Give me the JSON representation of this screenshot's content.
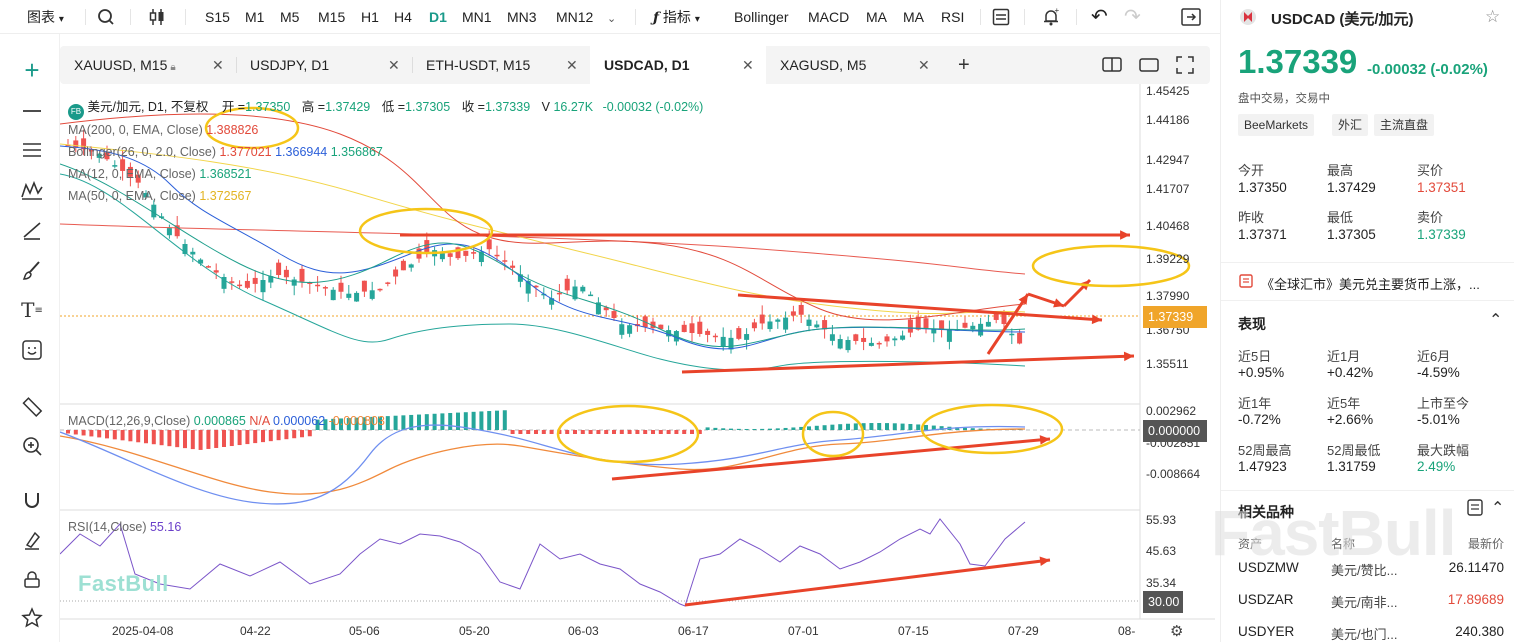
{
  "toolbar": {
    "chart_type": "图表",
    "timeframes": [
      "S15",
      "M1",
      "M5",
      "M15",
      "H1",
      "H4",
      "D1",
      "MN1",
      "MN3",
      "MN12"
    ],
    "selected_tf": "D1",
    "indicator_label": "指标",
    "studies": [
      "Bollinger",
      "MACD",
      "MA",
      "MA",
      "RSI"
    ]
  },
  "tabs": [
    {
      "label": "XAUUSD, M15",
      "locked": true
    },
    {
      "label": "USDJPY, D1"
    },
    {
      "label": "ETH-USDT, M15"
    },
    {
      "label": "USDCAD, D1",
      "active": true
    },
    {
      "label": "XAGUSD, M5"
    }
  ],
  "legend": {
    "badge": "FB",
    "symbol": "美元/加元, D1, 不复权",
    "open_l": "开 =",
    "open": "1.37350",
    "high_l": "高 =",
    "high": "1.37429",
    "low_l": "低 =",
    "low": "1.37305",
    "close_l": "收 =",
    "close": "1.37339",
    "vol_l": "V",
    "vol": "16.27K",
    "change": "-0.00032 (-0.02%)"
  },
  "studies_legend": {
    "ma200": {
      "label": "MA(200, 0, EMA, Close)",
      "v": "1.388826"
    },
    "boll": {
      "label": "Bollinger(26, 0, 2.0, Close)",
      "v1": "1.377021",
      "v2": "1.366944",
      "v3": "1.356867"
    },
    "ma12": {
      "label": "MA(12, 0, EMA, Close)",
      "v": "1.368521"
    },
    "ma50": {
      "label": "MA(50, 0, EMA, Close)",
      "v": "1.372567"
    },
    "macd": {
      "label": "MACD(12,26,9,Close)",
      "v1": "0.000865",
      "v2": "N/A",
      "v3": "0.000062",
      "v4": "-0.000803"
    },
    "rsi": {
      "label": "RSI(14,Close)",
      "v": "55.16"
    }
  },
  "price_axis": [
    "1.45425",
    "1.44186",
    "1.42947",
    "1.41707",
    "1.40468",
    "1.39229",
    "1.37990",
    "1.36750",
    "1.35511"
  ],
  "price_tag": "1.37339",
  "macd_axis": [
    "0.002962",
    "-0.002851",
    "-0.008664"
  ],
  "macd_tag": "0.000000",
  "rsi_axis": [
    "55.93",
    "45.63",
    "35.34"
  ],
  "rsi_tag": "30.00",
  "x_axis": [
    "2025-04-08",
    "04-22",
    "05-06",
    "05-20",
    "06-03",
    "06-17",
    "07-01",
    "07-15",
    "07-29",
    "08-"
  ],
  "watermark": "FastBull",
  "colors": {
    "up": "#26a69a",
    "down": "#ef5350",
    "accent": "#1a9a8a",
    "annotation": "#e8432a",
    "highlight": "#f5c518"
  },
  "panel": {
    "symbol": "USDCAD (美元/加元)",
    "price": "1.37339",
    "change": "-0.00032",
    "change_pct": "(-0.02%)",
    "status": "盘中交易，交易中",
    "chips": [
      "BeeMarkets",
      "外汇",
      "主流直盘"
    ],
    "quote": [
      {
        "l": "今开",
        "v": "1.37350"
      },
      {
        "l": "最高",
        "v": "1.37429"
      },
      {
        "l": "买价",
        "v": "1.37351"
      },
      {
        "l": "昨收",
        "v": "1.37371"
      },
      {
        "l": "最低",
        "v": "1.37305"
      },
      {
        "l": "卖价",
        "v": "1.37339"
      }
    ],
    "news": "《全球汇市》美元兑主要货币上涨，...",
    "perf_title": "表现",
    "perf": [
      {
        "l": "近5日",
        "v": "+0.95%"
      },
      {
        "l": "近1月",
        "v": "+0.42%"
      },
      {
        "l": "近6月",
        "v": "-4.59%"
      },
      {
        "l": "近1年",
        "v": "-0.72%"
      },
      {
        "l": "近5年",
        "v": "+2.66%"
      },
      {
        "l": "上市至今",
        "v": "-5.01%"
      },
      {
        "l": "52周最高",
        "v": "1.47923"
      },
      {
        "l": "52周最低",
        "v": "1.31759"
      },
      {
        "l": "最大跌幅",
        "v": "2.49%"
      }
    ],
    "related_title": "相关品种",
    "related_cols": [
      "资产",
      "名称",
      "最新价"
    ],
    "related": [
      {
        "a": "USDZMW",
        "n": "美元/赞比...",
        "p": "26.11470"
      },
      {
        "a": "USDZAR",
        "n": "美元/南非...",
        "p": "17.89689"
      },
      {
        "a": "USDYER",
        "n": "美元/也门...",
        "p": "240.380"
      }
    ]
  }
}
